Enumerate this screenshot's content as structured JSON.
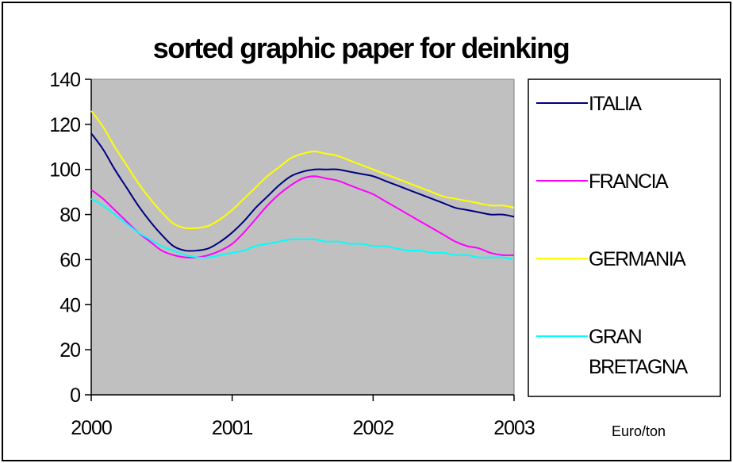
{
  "chart_data": {
    "type": "line",
    "title": "sorted graphic paper for deinking",
    "unit_label": "Euro/ton",
    "x": [
      2000,
      2000.083,
      2000.167,
      2000.25,
      2000.333,
      2000.417,
      2000.5,
      2000.583,
      2000.667,
      2000.75,
      2000.833,
      2000.917,
      2001,
      2001.083,
      2001.167,
      2001.25,
      2001.333,
      2001.417,
      2001.5,
      2001.583,
      2001.667,
      2001.75,
      2001.833,
      2001.917,
      2002,
      2002.083,
      2002.167,
      2002.25,
      2002.333,
      2002.417,
      2002.5,
      2002.583,
      2002.667,
      2002.75,
      2002.833,
      2002.917,
      2003
    ],
    "x_tick_labels": [
      "2000",
      "2001",
      "2002",
      "2003"
    ],
    "x_ticks": [
      2000,
      2001,
      2002,
      2003
    ],
    "xlim": [
      2000,
      2003
    ],
    "ylim": [
      0,
      140
    ],
    "y_ticks": [
      0,
      20,
      40,
      60,
      80,
      100,
      120,
      140
    ],
    "y_tick_labels": [
      "0",
      "20",
      "40",
      "60",
      "80",
      "100",
      "120",
      "140"
    ],
    "plot_background": "#c0c0c0",
    "legend_position": "right",
    "series": [
      {
        "name": "ITALIA",
        "color": "#000080",
        "values": [
          116,
          109,
          100,
          92,
          84,
          77,
          71,
          66,
          64,
          64,
          65,
          68,
          72,
          77,
          83,
          88,
          93,
          97,
          99,
          100,
          100,
          100,
          99,
          98,
          97,
          95,
          93,
          91,
          89,
          87,
          85,
          83,
          82,
          81,
          80,
          80,
          79
        ]
      },
      {
        "name": "FRANCIA",
        "color": "#ff00ff",
        "values": [
          91,
          87,
          82,
          77,
          72,
          68,
          64,
          62,
          61,
          61,
          62,
          64,
          67,
          72,
          78,
          84,
          89,
          93,
          96,
          97,
          96,
          95,
          93,
          91,
          89,
          86,
          83,
          80,
          77,
          74,
          71,
          68,
          66,
          65,
          63,
          62,
          62
        ]
      },
      {
        "name": "GERMANIA",
        "color": "#ffff00",
        "values": [
          126,
          119,
          110,
          102,
          94,
          87,
          81,
          76,
          74,
          74,
          75,
          78,
          82,
          87,
          92,
          97,
          101,
          105,
          107,
          108,
          107,
          106,
          104,
          102,
          100,
          98,
          96,
          94,
          92,
          90,
          88,
          87,
          86,
          85,
          84,
          84,
          83
        ]
      },
      {
        "name": "GRAN BRETAGNA",
        "color": "#00ffff",
        "values": [
          87,
          84,
          80,
          76,
          72,
          69,
          66,
          64,
          62,
          61,
          61,
          62,
          63,
          64,
          66,
          67,
          68,
          69,
          69,
          69,
          68,
          68,
          67,
          67,
          66,
          66,
          65,
          64,
          64,
          63,
          63,
          62,
          62,
          61,
          61,
          61,
          60
        ]
      }
    ],
    "legend_labels": [
      [
        "ITALIA"
      ],
      [
        "FRANCIA"
      ],
      [
        "GERMANIA"
      ],
      [
        "GRAN",
        "BRETAGNA"
      ]
    ]
  }
}
